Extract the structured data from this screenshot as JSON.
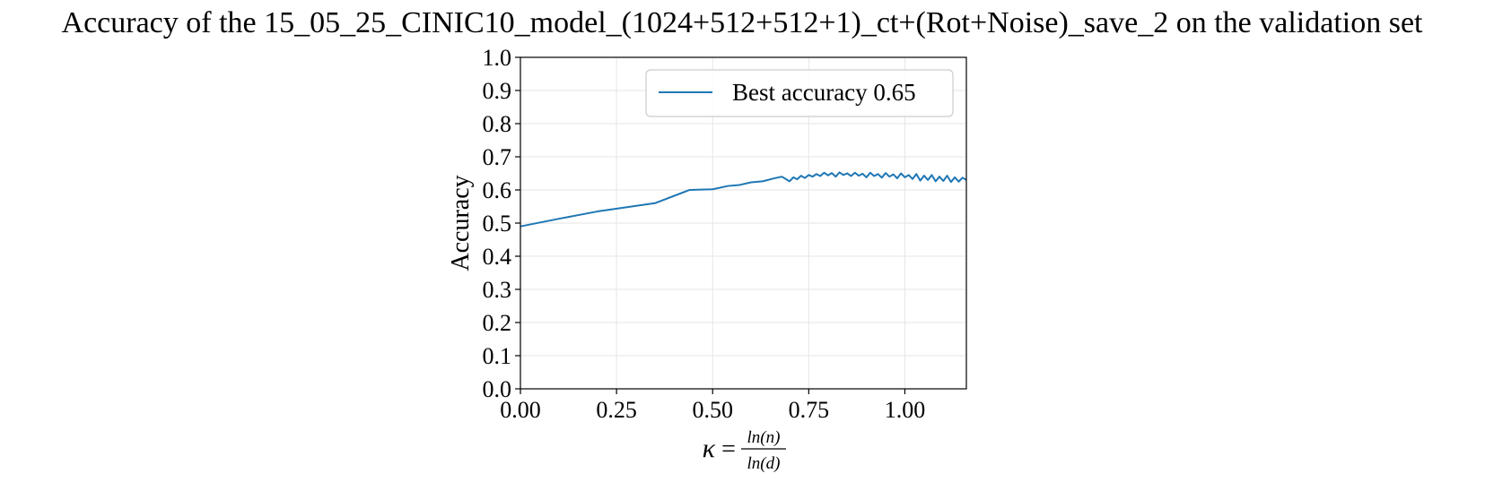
{
  "chart_data": {
    "type": "line",
    "title": "Accuracy of the 15_05_25_CINIC10_model_(1024+512+512+1)_ct+(Rot+Noise)_save_2 on the validation set",
    "xlabel": {
      "symbol": "κ",
      "equals": "=",
      "numerator": "ln(n)",
      "denominator": "ln(d)"
    },
    "ylabel": "Accuracy",
    "xlim": [
      0.0,
      1.16
    ],
    "ylim": [
      0.0,
      1.0
    ],
    "xticks": [
      0.0,
      0.25,
      0.5,
      0.75,
      1.0
    ],
    "xtick_labels": [
      "0.00",
      "0.25",
      "0.50",
      "0.75",
      "1.00"
    ],
    "yticks": [
      0.0,
      0.1,
      0.2,
      0.3,
      0.4,
      0.5,
      0.6,
      0.7,
      0.8,
      0.9,
      1.0
    ],
    "ytick_labels": [
      "0.0",
      "0.1",
      "0.2",
      "0.3",
      "0.4",
      "0.5",
      "0.6",
      "0.7",
      "0.8",
      "0.9",
      "1.0"
    ],
    "grid": true,
    "legend_position": "top-right",
    "series": [
      {
        "name": "Best accuracy 0.65",
        "color": "#1f77b4",
        "x": [
          0.0,
          0.1,
          0.2,
          0.35,
          0.44,
          0.5,
          0.54,
          0.57,
          0.6,
          0.63,
          0.66,
          0.68,
          0.69,
          0.7,
          0.71,
          0.72,
          0.73,
          0.74,
          0.75,
          0.76,
          0.77,
          0.78,
          0.79,
          0.8,
          0.81,
          0.82,
          0.83,
          0.84,
          0.85,
          0.86,
          0.87,
          0.88,
          0.89,
          0.9,
          0.91,
          0.92,
          0.93,
          0.94,
          0.95,
          0.96,
          0.97,
          0.98,
          0.99,
          1.0,
          1.01,
          1.02,
          1.03,
          1.04,
          1.05,
          1.06,
          1.07,
          1.08,
          1.09,
          1.1,
          1.11,
          1.12,
          1.13,
          1.14,
          1.15,
          1.16
        ],
        "y": [
          0.49,
          0.513,
          0.535,
          0.56,
          0.6,
          0.602,
          0.612,
          0.615,
          0.623,
          0.626,
          0.635,
          0.64,
          0.633,
          0.626,
          0.638,
          0.632,
          0.643,
          0.636,
          0.645,
          0.64,
          0.648,
          0.642,
          0.652,
          0.644,
          0.651,
          0.64,
          0.653,
          0.645,
          0.65,
          0.642,
          0.652,
          0.643,
          0.649,
          0.638,
          0.652,
          0.642,
          0.648,
          0.637,
          0.651,
          0.64,
          0.647,
          0.635,
          0.65,
          0.638,
          0.645,
          0.633,
          0.648,
          0.628,
          0.643,
          0.63,
          0.645,
          0.626,
          0.64,
          0.627,
          0.643,
          0.624,
          0.638,
          0.625,
          0.637,
          0.63
        ]
      }
    ]
  }
}
